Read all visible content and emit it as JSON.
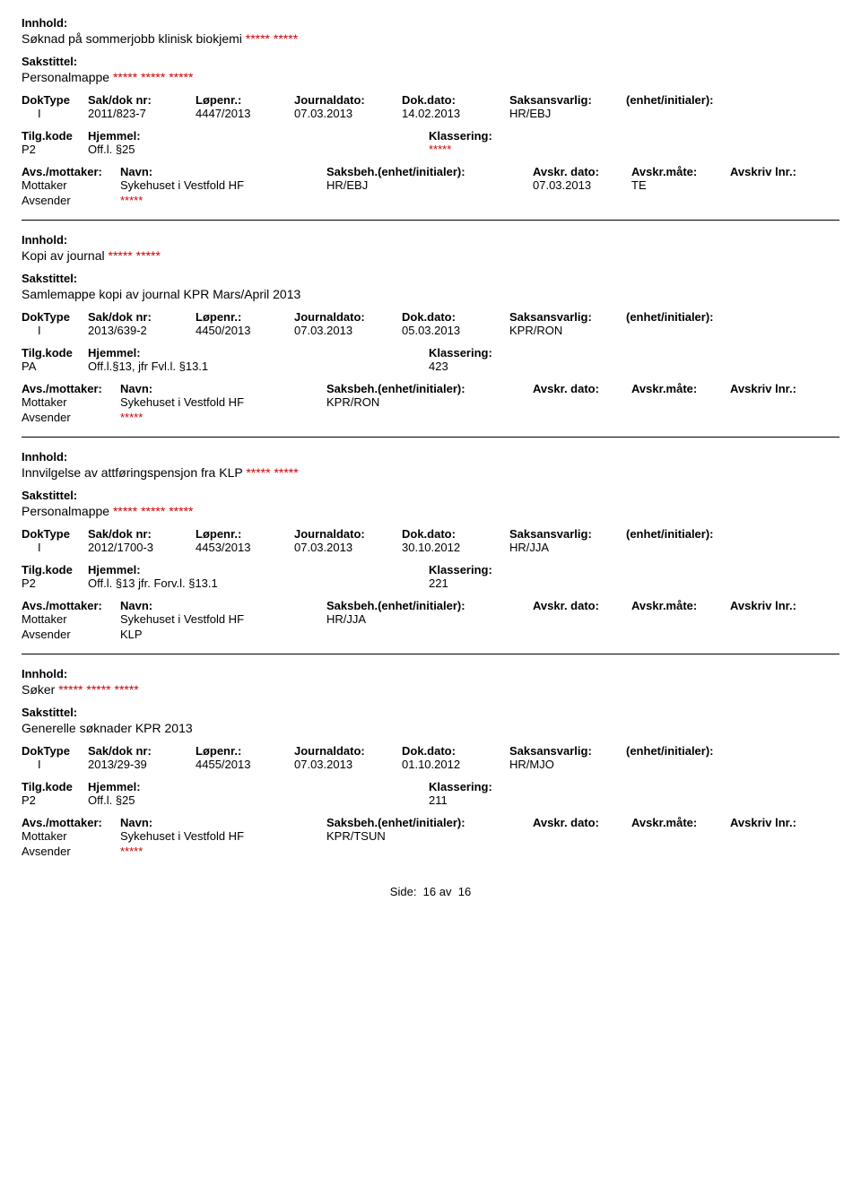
{
  "labels": {
    "innhold": "Innhold:",
    "sakstittel": "Sakstittel:",
    "doktype": "DokType",
    "sakdok": "Sak/dok nr:",
    "lopenr": "Løpenr.:",
    "journaldato": "Journaldato:",
    "dokdato": "Dok.dato:",
    "saksansvarlig": "Saksansvarlig:",
    "enhet": "(enhet/initialer):",
    "tilgkode": "Tilg.kode",
    "hjemmel": "Hjemmel:",
    "klassering": "Klassering:",
    "avsmottaker": "Avs./mottaker:",
    "navn": "Navn:",
    "saksbeh": "Saksbeh.(enhet/initialer):",
    "avskrdato": "Avskr. dato:",
    "avskrmote": "Avskr.måte:",
    "avskrlnr": "Avskriv lnr.:",
    "mottaker": "Mottaker",
    "avsender": "Avsender"
  },
  "footer": {
    "side": "Side:",
    "page": "16",
    "av": "av",
    "total": "16"
  },
  "records": [
    {
      "innhold_pre": "Søknad på sommerjobb klinisk biokjemi ",
      "innhold_red": "***** *****",
      "sakstittel_pre": "Personalmappe ",
      "sakstittel_red": "***** ***** *****",
      "doktype": "I",
      "sakdok": "2011/823-7",
      "lopenr": "4447/2013",
      "journaldato": "07.03.2013",
      "dokdato": "14.02.2013",
      "saksansvarlig": "HR/EBJ",
      "tilgkode": "P2",
      "hjemmel": "Off.l. §25",
      "klassering": "*****",
      "klassering_red": true,
      "mottaker_navn": "Sykehuset i Vestfold HF",
      "saksbeh": "HR/EBJ",
      "avskr_dato": "07.03.2013",
      "avskr_mote": "TE",
      "avsender_navn": "*****",
      "avsender_red": true
    },
    {
      "innhold_pre": "Kopi av journal ",
      "innhold_red": "***** *****",
      "sakstittel_pre": "Samlemappe kopi av journal KPR Mars/April 2013",
      "sakstittel_red": "",
      "doktype": "I",
      "sakdok": "2013/639-2",
      "lopenr": "4450/2013",
      "journaldato": "07.03.2013",
      "dokdato": "05.03.2013",
      "saksansvarlig": "KPR/RON",
      "tilgkode": "PA",
      "hjemmel": "Off.l.§13, jfr Fvl.l. §13.1",
      "klassering": "423",
      "klassering_red": false,
      "mottaker_navn": "Sykehuset i Vestfold HF",
      "saksbeh": "KPR/RON",
      "avskr_dato": "",
      "avskr_mote": "",
      "avsender_navn": "*****",
      "avsender_red": true
    },
    {
      "innhold_pre": "Innvilgelse av attføringspensjon fra KLP ",
      "innhold_red": "***** *****",
      "sakstittel_pre": "Personalmappe ",
      "sakstittel_red": "***** ***** *****",
      "doktype": "I",
      "sakdok": "2012/1700-3",
      "lopenr": "4453/2013",
      "journaldato": "07.03.2013",
      "dokdato": "30.10.2012",
      "saksansvarlig": "HR/JJA",
      "tilgkode": "P2",
      "hjemmel": "Off.l. §13  jfr. Forv.l. §13.1",
      "klassering": "221",
      "klassering_red": false,
      "mottaker_navn": "Sykehuset i Vestfold HF",
      "saksbeh": "HR/JJA",
      "avskr_dato": "",
      "avskr_mote": "",
      "avsender_navn": "KLP",
      "avsender_red": false
    },
    {
      "innhold_pre": "Søker ",
      "innhold_red": "***** ***** *****",
      "sakstittel_pre": "Generelle søknader KPR 2013",
      "sakstittel_red": "",
      "doktype": "I",
      "sakdok": "2013/29-39",
      "lopenr": "4455/2013",
      "journaldato": "07.03.2013",
      "dokdato": "01.10.2012",
      "saksansvarlig": "HR/MJO",
      "tilgkode": "P2",
      "hjemmel": "Off.l. §25",
      "klassering": "211",
      "klassering_red": false,
      "mottaker_navn": "Sykehuset i Vestfold HF",
      "saksbeh": "KPR/TSUN",
      "avskr_dato": "",
      "avskr_mote": "",
      "avsender_navn": "*****",
      "avsender_red": true
    }
  ]
}
